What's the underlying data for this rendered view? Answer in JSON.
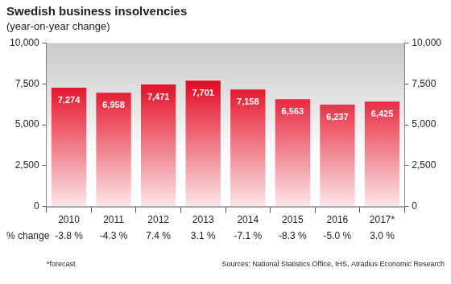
{
  "chart_data": {
    "type": "bar",
    "title": "Swedish business insolvencies",
    "subtitle": "(year-on-year change)",
    "categories": [
      "2010",
      "2011",
      "2012",
      "2013",
      "2014",
      "2015",
      "2016",
      "2017*"
    ],
    "values": [
      7274,
      6958,
      7471,
      7701,
      7158,
      6563,
      6237,
      6425
    ],
    "value_labels": [
      "7,274",
      "6,958",
      "7,471",
      "7,701",
      "7,158",
      "6,563",
      "6,237",
      "6,425"
    ],
    "color": "#e2001a",
    "ylim": [
      0,
      10000
    ],
    "yticks": [
      0,
      {
        "value": 2500,
        "label": "2,500"
      },
      {
        "value": 5000,
        "label": "5,000"
      },
      {
        "value": 7500,
        "label": "7,500"
      },
      {
        "value": 10000,
        "label": "10,000"
      }
    ],
    "y2lim": [
      0,
      10000
    ],
    "y2ticks": [
      0,
      {
        "value": 2500,
        "label": "2,500"
      },
      {
        "value": 5000,
        "label": "5,000"
      },
      {
        "value": 7500,
        "label": "7,500"
      },
      {
        "value": 10000,
        "label": "10,000"
      }
    ],
    "grid": false,
    "data_labels": true,
    "annotations": {
      "row_label": "% change",
      "row": [
        "-3.8 %",
        "-4.3 %",
        "7.4 %",
        "3.1 %",
        "-7.1 %",
        "-8.3 %",
        "-5.0 %",
        "3.0 %"
      ],
      "footnote": "*forecast",
      "source": "Sources: National Statistics Office, IHS, Atradius Economic Research"
    }
  }
}
